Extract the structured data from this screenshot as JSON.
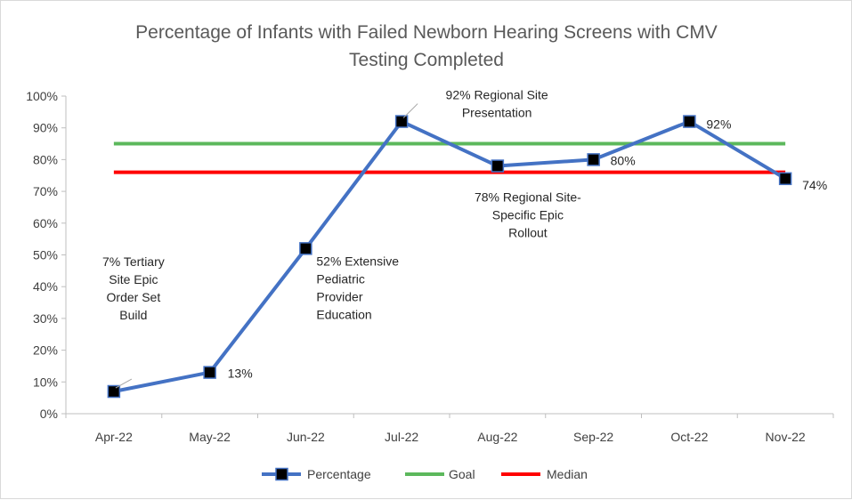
{
  "chart_data": {
    "type": "line",
    "title_lines": [
      "Percentage of Infants with Failed Newborn Hearing Screens with CMV",
      "Testing Completed"
    ],
    "categories": [
      "Apr-22",
      "May-22",
      "Jun-22",
      "Jul-22",
      "Aug-22",
      "Sep-22",
      "Oct-22",
      "Nov-22"
    ],
    "ylim": [
      0,
      100
    ],
    "y_ticks": [
      0,
      10,
      20,
      30,
      40,
      50,
      60,
      70,
      80,
      90,
      100
    ],
    "y_tick_labels": [
      "0%",
      "10%",
      "20%",
      "30%",
      "40%",
      "50%",
      "60%",
      "70%",
      "80%",
      "90%",
      "100%"
    ],
    "grid": false,
    "legend_position": "bottom",
    "series": [
      {
        "name": "Percentage",
        "values": [
          7,
          13,
          52,
          92,
          78,
          80,
          92,
          74
        ],
        "color": "#4472c4",
        "marker": "square"
      },
      {
        "name": "Goal",
        "values": [
          85,
          85,
          85,
          85,
          85,
          85,
          85,
          85
        ],
        "color": "#5cb85c"
      },
      {
        "name": "Median",
        "values": [
          76,
          76,
          76,
          76,
          76,
          76,
          76,
          76
        ],
        "color": "#ff0000"
      }
    ],
    "annotations": [
      {
        "point": 0,
        "lines": [
          "7% Tertiary",
          "Site Epic",
          "Order Set",
          "Build"
        ],
        "leader": true
      },
      {
        "point": 1,
        "lines": [
          "13%"
        ],
        "leader": false
      },
      {
        "point": 2,
        "lines": [
          "52% Extensive",
          "Pediatric",
          "Provider",
          "Education"
        ],
        "leader": false
      },
      {
        "point": 3,
        "lines": [
          "92% Regional Site",
          "Presentation"
        ],
        "leader": true
      },
      {
        "point": 4,
        "lines": [
          "78% Regional Site-",
          "Specific Epic",
          "Rollout"
        ],
        "leader": false
      },
      {
        "point": 5,
        "lines": [
          "80%"
        ],
        "leader": false
      },
      {
        "point": 6,
        "lines": [
          "92%"
        ],
        "leader": false
      },
      {
        "point": 7,
        "lines": [
          "74%"
        ],
        "leader": false
      }
    ]
  }
}
